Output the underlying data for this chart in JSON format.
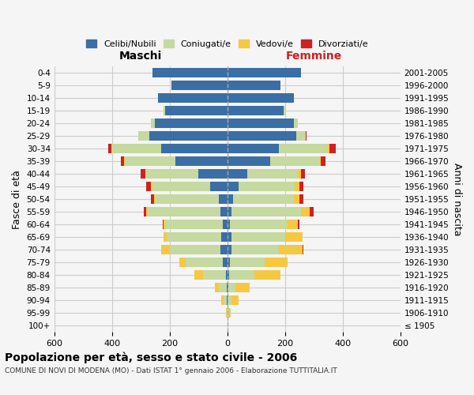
{
  "age_groups": [
    "100+",
    "95-99",
    "90-94",
    "85-89",
    "80-84",
    "75-79",
    "70-74",
    "65-69",
    "60-64",
    "55-59",
    "50-54",
    "45-49",
    "40-44",
    "35-39",
    "30-34",
    "25-29",
    "20-24",
    "15-19",
    "10-14",
    "5-9",
    "0-4"
  ],
  "birth_years": [
    "≤ 1905",
    "1906-1910",
    "1911-1915",
    "1916-1920",
    "1921-1925",
    "1926-1930",
    "1931-1935",
    "1936-1940",
    "1941-1945",
    "1946-1950",
    "1951-1955",
    "1956-1960",
    "1961-1965",
    "1966-1970",
    "1971-1975",
    "1976-1980",
    "1981-1985",
    "1986-1990",
    "1991-1995",
    "1996-2000",
    "2001-2005"
  ],
  "male": {
    "celibi": [
      0,
      0,
      2,
      3,
      5,
      15,
      25,
      20,
      15,
      25,
      30,
      60,
      100,
      180,
      230,
      270,
      250,
      215,
      240,
      195,
      260
    ],
    "coniugati": [
      0,
      3,
      10,
      25,
      80,
      130,
      175,
      190,
      200,
      250,
      220,
      200,
      180,
      175,
      170,
      40,
      15,
      5,
      0,
      0,
      0
    ],
    "vedovi": [
      0,
      2,
      10,
      15,
      30,
      20,
      30,
      10,
      5,
      5,
      5,
      5,
      5,
      3,
      2,
      0,
      0,
      0,
      0,
      0,
      0
    ],
    "divorziati": [
      0,
      0,
      0,
      0,
      0,
      0,
      0,
      0,
      5,
      10,
      10,
      15,
      15,
      10,
      10,
      0,
      0,
      0,
      0,
      0,
      0
    ]
  },
  "female": {
    "nubili": [
      0,
      0,
      2,
      3,
      5,
      10,
      15,
      15,
      10,
      15,
      20,
      40,
      70,
      150,
      180,
      240,
      230,
      195,
      230,
      185,
      255
    ],
    "coniugate": [
      0,
      5,
      12,
      25,
      90,
      120,
      165,
      185,
      195,
      240,
      210,
      195,
      175,
      170,
      170,
      30,
      15,
      5,
      0,
      0,
      0
    ],
    "vedove": [
      2,
      8,
      25,
      50,
      90,
      80,
      80,
      60,
      40,
      30,
      20,
      15,
      10,
      5,
      5,
      3,
      0,
      0,
      0,
      0,
      0
    ],
    "divorziate": [
      0,
      0,
      0,
      0,
      0,
      0,
      5,
      0,
      5,
      15,
      15,
      15,
      15,
      15,
      20,
      3,
      0,
      0,
      0,
      0,
      0
    ]
  },
  "colors": {
    "celibi": "#3a6ea5",
    "coniugati": "#c5d9a0",
    "vedovi": "#f5c842",
    "divorziati": "#cc2222"
  },
  "xlim": 600,
  "title": "Popolazione per età, sesso e stato civile - 2006",
  "subtitle": "COMUNE DI NOVI DI MODENA (MO) - Dati ISTAT 1° gennaio 2006 - Elaborazione TUTTITALIA.IT",
  "ylabel_left": "Fasce di età",
  "ylabel_right": "Anni di nascita",
  "xlabel_left": "Maschi",
  "xlabel_right": "Femmine"
}
